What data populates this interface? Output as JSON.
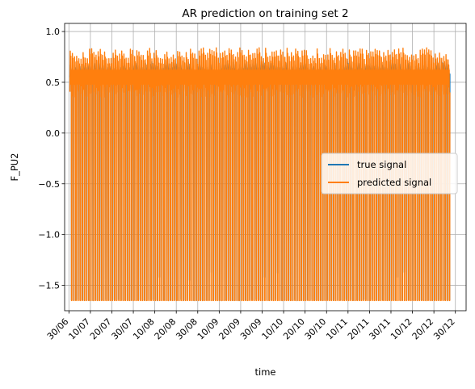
{
  "chart_data": {
    "type": "line",
    "title": "AR prediction on training set 2",
    "xlabel": "time",
    "ylabel": "F_PU2",
    "ylim": [
      -1.75,
      1.08
    ],
    "yticks": [
      -1.5,
      -1.0,
      -0.5,
      0.0,
      0.5,
      1.0
    ],
    "ytick_labels": [
      "−1.5",
      "−1.0",
      "−0.5",
      "0.0",
      "0.5",
      "1.0"
    ],
    "xticks": [
      "30/06",
      "10/07",
      "20/07",
      "30/07",
      "10/08",
      "20/08",
      "30/08",
      "10/09",
      "20/09",
      "30/09",
      "10/10",
      "20/10",
      "30/10",
      "10/11",
      "20/11",
      "30/11",
      "10/12",
      "20/12",
      "30/12"
    ],
    "x_range_days": [
      -2,
      185
    ],
    "data_x_range_days": [
      0.5,
      177.5
    ],
    "grid": true,
    "legend": {
      "position": "center-right",
      "entries": [
        "true signal",
        "predicted signal"
      ]
    },
    "series": [
      {
        "name": "true signal",
        "color": "#1f77b4",
        "typical_high": 0.6,
        "typical_low": -1.65,
        "cycle_days": 1,
        "visible_low_spikes": [
          {
            "day": 41.5,
            "value": -1.42
          },
          {
            "day": 55.5,
            "value": -1.45
          },
          {
            "day": 65.5,
            "value": -1.37
          },
          {
            "day": 90.5,
            "value": -1.42
          },
          {
            "day": 96.5,
            "value": -1.38
          },
          {
            "day": 152.5,
            "value": -1.42
          },
          {
            "day": 155.5,
            "value": -1.37
          }
        ]
      },
      {
        "name": "predicted signal",
        "color": "#ff7f0e",
        "typical_high": 0.78,
        "typical_low": -1.65,
        "cycle_days": 1
      }
    ]
  }
}
